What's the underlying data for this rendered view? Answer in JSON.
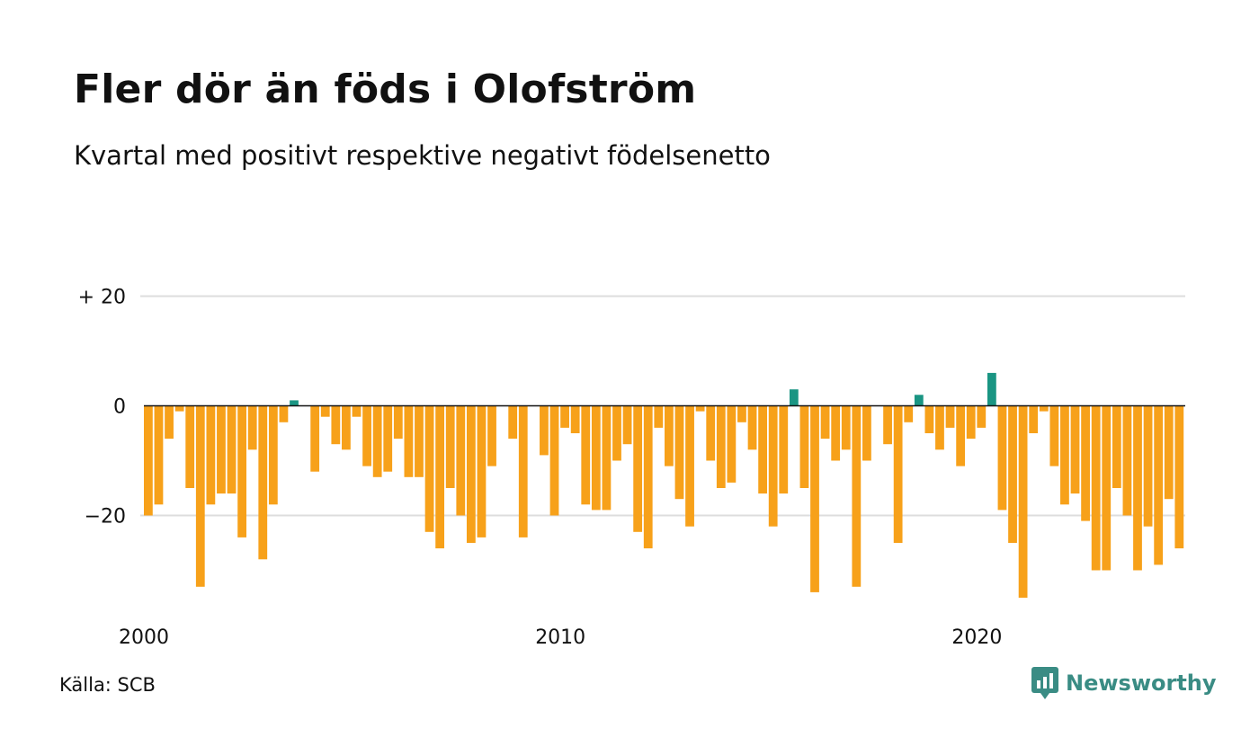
{
  "title": "Fler dör än föds i Olofström",
  "subtitle": "Kvartal med positivt respektive negativt födelsenetto",
  "source": "Källa: SCB",
  "brand": {
    "name": "Newsworthy",
    "icon": "newsworthy-logo-icon",
    "color": "#3a8c84"
  },
  "colors": {
    "positive": "#1a9583",
    "negative": "#f7a11a",
    "grid": "#dddddd",
    "zero_line": "#111111"
  },
  "chart_data": {
    "type": "bar",
    "title": "Fler dör än föds i Olofström",
    "subtitle": "Kvartal med positivt respektive negativt födelsenetto",
    "xlabel": "",
    "ylabel": "",
    "x_start": "2000 Q1",
    "x_tick_labels": [
      "2000",
      "2010",
      "2020"
    ],
    "y_ticks": [
      {
        "value": 20,
        "label": "+ 20"
      },
      {
        "value": 0,
        "label": "0"
      },
      {
        "value": -20,
        "label": "−20"
      }
    ],
    "ylim": [
      -38,
      20
    ],
    "grid": true,
    "values": [
      -20,
      -18,
      -6,
      -1,
      -15,
      -33,
      -18,
      -16,
      -16,
      -24,
      -8,
      -28,
      -18,
      -3,
      1,
      0,
      -12,
      -2,
      -7,
      -8,
      -2,
      -11,
      -13,
      -12,
      -6,
      -13,
      -13,
      -23,
      -26,
      -15,
      -20,
      -25,
      -24,
      -11,
      0,
      -6,
      -24,
      0,
      -9,
      -20,
      -4,
      -5,
      -18,
      -19,
      -19,
      -10,
      -7,
      -23,
      -26,
      -4,
      -11,
      -17,
      -22,
      -1,
      -10,
      -15,
      -14,
      -3,
      -8,
      -16,
      -22,
      -16,
      3,
      -15,
      -34,
      -6,
      -10,
      -8,
      -33,
      -10,
      0,
      -7,
      -25,
      -3,
      2,
      -5,
      -8,
      -4,
      -11,
      -6,
      -4,
      6,
      -19,
      -25,
      -35,
      -5,
      -1,
      -11,
      -18,
      -16,
      -21,
      -30,
      -30,
      -15,
      -20,
      -30,
      -22,
      -29,
      -17,
      -26
    ]
  }
}
